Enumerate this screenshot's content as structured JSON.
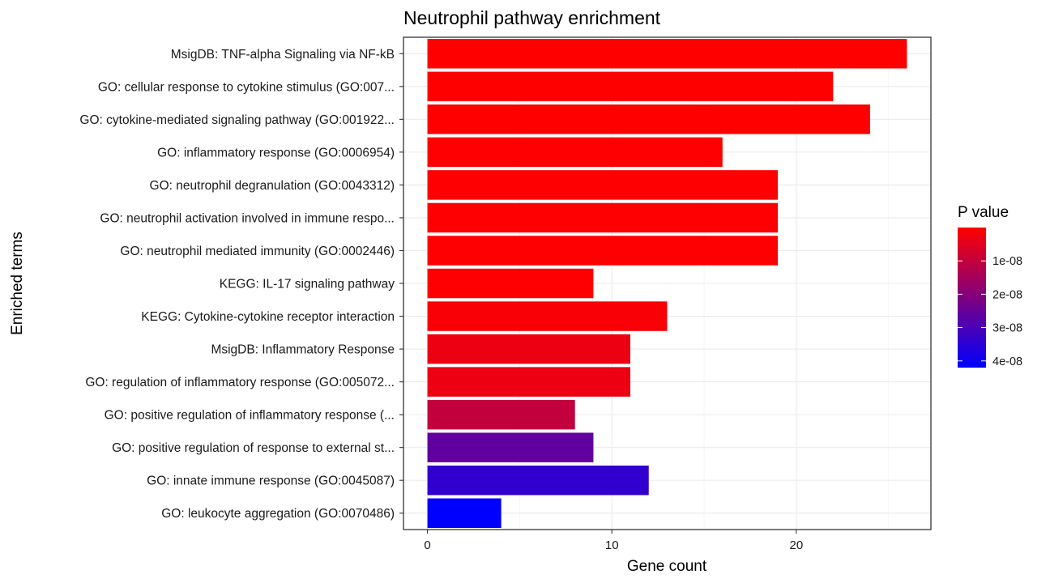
{
  "chart_data": {
    "type": "bar",
    "orientation": "horizontal",
    "title": "Neutrophil pathway enrichment",
    "xlabel": "Gene count",
    "ylabel": "Enriched terms",
    "xlim": [
      -1.3,
      27.3
    ],
    "x_ticks": [
      "0",
      "10",
      "20"
    ],
    "x_tick_values": [
      0,
      10,
      20
    ],
    "grid": true,
    "categories": [
      "MsigDB: TNF-alpha Signaling via NF-kB",
      "GO: cellular response to cytokine stimulus (GO:007...",
      "GO: cytokine-mediated signaling pathway (GO:001922...",
      "GO: inflammatory response (GO:0006954)",
      "GO: neutrophil degranulation (GO:0043312)",
      "GO: neutrophil activation involved in immune respo...",
      "GO: neutrophil mediated immunity (GO:0002446)",
      "KEGG: IL-17 signaling pathway",
      "KEGG: Cytokine-cytokine receptor interaction",
      "MsigDB: Inflammatory Response",
      "GO: regulation of inflammatory response (GO:005072...",
      "GO: positive regulation of inflammatory response (...",
      "GO: positive regulation of response to external st...",
      "GO: innate immune response (GO:0045087)",
      "GO: leukocyte aggregation (GO:0070486)"
    ],
    "values": [
      26,
      22,
      24,
      16,
      19,
      19,
      19,
      9,
      13,
      11,
      11,
      8,
      9,
      12,
      4
    ],
    "p_values": [
      1e-12,
      1e-11,
      1e-11,
      1e-10,
      1e-10,
      1e-10,
      1e-10,
      2e-10,
      1e-09,
      3e-09,
      3e-09,
      1e-08,
      2.6e-08,
      3.4e-08,
      4.2e-08
    ],
    "legend": {
      "title": "P value",
      "position": "right",
      "color_low": "#ff0000",
      "color_high": "#0000ff",
      "range": [
        0,
        4.2e-08
      ],
      "ticks": [
        "1e-08",
        "2e-08",
        "3e-08",
        "4e-08"
      ],
      "tick_values": [
        1e-08,
        2e-08,
        3e-08,
        4e-08
      ]
    },
    "colors": {
      "panel_border": "#333333",
      "grid_major": "#ebebeb",
      "grid_minor": "#f5f5f5"
    }
  }
}
